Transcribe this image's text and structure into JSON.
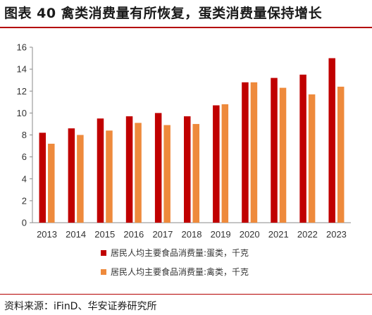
{
  "header": {
    "title": "图表 40 禽类消费量有所恢复，蛋类消费量保持增长"
  },
  "footer": {
    "source": "资料来源：iFinD、华安证券研究所"
  },
  "chart_data": {
    "type": "bar",
    "categories": [
      "2013",
      "2014",
      "2015",
      "2016",
      "2017",
      "2018",
      "2019",
      "2020",
      "2021",
      "2022",
      "2023"
    ],
    "series": [
      {
        "name": "居民人均主要食品消费量:蛋类，千克",
        "color": "#c00000",
        "values": [
          8.2,
          8.6,
          9.5,
          9.7,
          10.0,
          9.7,
          10.7,
          12.8,
          13.2,
          13.5,
          15.0
        ]
      },
      {
        "name": "居民人均主要食品消费量:禽类，千克",
        "color": "#ee8a3c",
        "values": [
          7.2,
          8.0,
          8.4,
          9.1,
          8.9,
          9.0,
          10.8,
          12.8,
          12.3,
          11.7,
          12.4
        ]
      }
    ],
    "ylim": [
      0,
      16
    ],
    "yticks": [
      0,
      2,
      4,
      6,
      8,
      10,
      12,
      14,
      16
    ],
    "grid": false,
    "legend_position": "bottom"
  }
}
